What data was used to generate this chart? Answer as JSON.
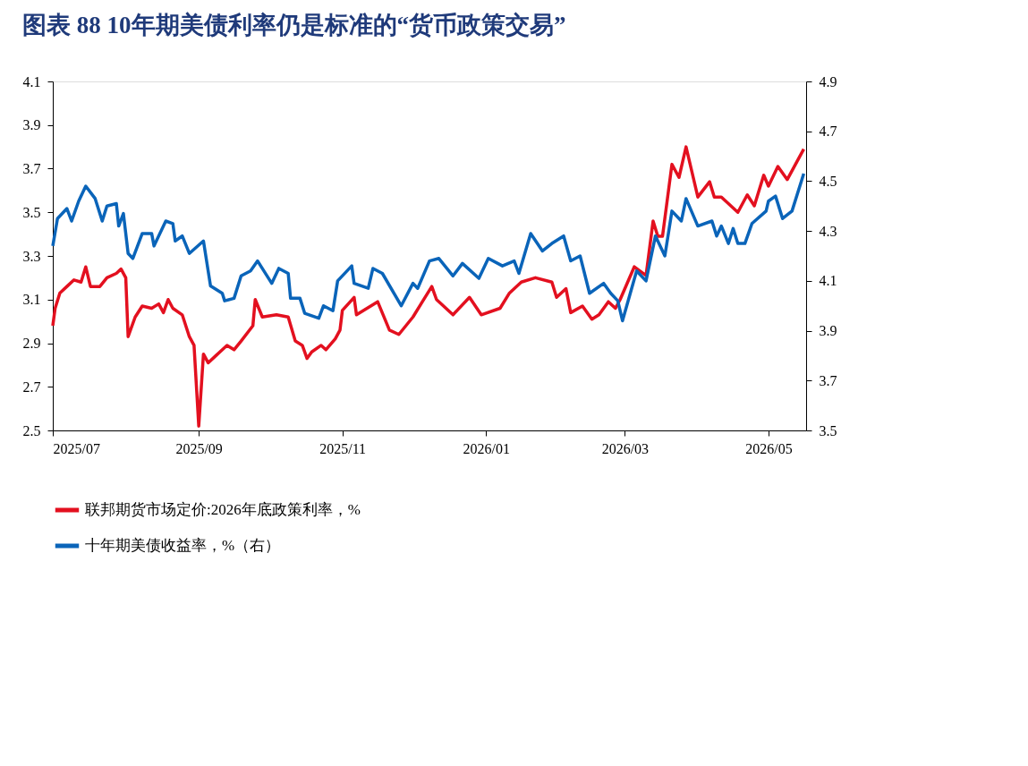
{
  "chart_data": {
    "type": "line",
    "title": "图表 88   10年期美债利率仍是标准的“货币政策交易”",
    "xlim": [
      "2025-07-01",
      "2026-05-17"
    ],
    "xticks": [
      {
        "value": "2025-07-01",
        "label": "2025/07"
      },
      {
        "value": "2025-09-01",
        "label": "2025/09"
      },
      {
        "value": "2025-11-01",
        "label": "2025/11"
      },
      {
        "value": "2026-01-01",
        "label": "2026/01"
      },
      {
        "value": "2026-03-01",
        "label": "2026/03"
      },
      {
        "value": "2026-05-01",
        "label": "2026/05"
      }
    ],
    "ylim": [
      2.5,
      4.1
    ],
    "yticks": [
      2.5,
      2.7,
      2.9,
      3.1,
      3.3,
      3.5,
      3.7,
      3.9,
      4.1
    ],
    "y2lim": [
      3.5,
      4.9
    ],
    "y2ticks": [
      3.5,
      3.7,
      3.9,
      4.1,
      4.3,
      4.5,
      4.7,
      4.9
    ],
    "grid": false,
    "legend": "bottom",
    "line_style": "solid",
    "series": [
      {
        "name": "联邦期货市场定价:2026年底政策利率，%",
        "color": "#e3101f",
        "axis": "y",
        "x": [
          "2025-07-01",
          "2025-07-02",
          "2025-07-04",
          "2025-07-07",
          "2025-07-10",
          "2025-07-13",
          "2025-07-15",
          "2025-07-17",
          "2025-07-21",
          "2025-07-24",
          "2025-07-28",
          "2025-07-30",
          "2025-08-01",
          "2025-08-02",
          "2025-08-05",
          "2025-08-08",
          "2025-08-12",
          "2025-08-15",
          "2025-08-17",
          "2025-08-19",
          "2025-08-21",
          "2025-08-25",
          "2025-08-28",
          "2025-08-30",
          "2025-09-01",
          "2025-09-03",
          "2025-09-05",
          "2025-09-08",
          "2025-09-10",
          "2025-09-13",
          "2025-09-16",
          "2025-09-19",
          "2025-09-24",
          "2025-09-25",
          "2025-09-28",
          "2025-10-04",
          "2025-10-09",
          "2025-10-12",
          "2025-10-15",
          "2025-10-17",
          "2025-10-19",
          "2025-10-23",
          "2025-10-25",
          "2025-10-29",
          "2025-10-31",
          "2025-11-01",
          "2025-11-06",
          "2025-11-07",
          "2025-11-16",
          "2025-11-21",
          "2025-11-25",
          "2025-12-01",
          "2025-12-05",
          "2025-12-09",
          "2025-12-11",
          "2025-12-18",
          "2025-12-25",
          "2025-12-30",
          "2026-01-07",
          "2026-01-11",
          "2026-01-16",
          "2026-01-22",
          "2026-01-29",
          "2026-01-31",
          "2026-02-04",
          "2026-02-06",
          "2026-02-11",
          "2026-02-15",
          "2026-02-18",
          "2026-02-22",
          "2026-02-25",
          "2026-02-27",
          "2026-03-05",
          "2026-03-10",
          "2026-03-13",
          "2026-03-15",
          "2026-03-17",
          "2026-03-21",
          "2026-03-24",
          "2026-03-27",
          "2026-04-01",
          "2026-04-06",
          "2026-04-08",
          "2026-04-11",
          "2026-04-18",
          "2026-04-22",
          "2026-04-25",
          "2026-04-29",
          "2026-05-01",
          "2026-05-05",
          "2026-05-09",
          "2026-05-13",
          "2026-05-16"
        ],
        "values": [
          2.98,
          3.06,
          3.13,
          3.16,
          3.19,
          3.18,
          3.25,
          3.16,
          3.16,
          3.2,
          3.22,
          3.24,
          3.2,
          2.93,
          3.02,
          3.07,
          3.06,
          3.08,
          3.04,
          3.1,
          3.06,
          3.03,
          2.93,
          2.89,
          2.52,
          2.85,
          2.81,
          2.84,
          2.86,
          2.89,
          2.87,
          2.91,
          2.98,
          3.1,
          3.02,
          3.03,
          3.02,
          2.91,
          2.89,
          2.83,
          2.86,
          2.89,
          2.87,
          2.92,
          2.96,
          3.05,
          3.11,
          3.03,
          3.09,
          2.96,
          2.94,
          3.02,
          3.09,
          3.16,
          3.1,
          3.03,
          3.11,
          3.03,
          3.06,
          3.13,
          3.18,
          3.2,
          3.18,
          3.11,
          3.15,
          3.04,
          3.07,
          3.01,
          3.03,
          3.09,
          3.06,
          3.1,
          3.25,
          3.21,
          3.46,
          3.39,
          3.39,
          3.72,
          3.66,
          3.8,
          3.57,
          3.64,
          3.57,
          3.57,
          3.5,
          3.58,
          3.53,
          3.67,
          3.62,
          3.71,
          3.65,
          3.73,
          3.79
        ]
      },
      {
        "name": "十年期美债收益率，%（右）",
        "color": "#0a64b9",
        "axis": "y2",
        "x": [
          "2025-07-01",
          "2025-07-03",
          "2025-07-07",
          "2025-07-09",
          "2025-07-12",
          "2025-07-15",
          "2025-07-19",
          "2025-07-22",
          "2025-07-24",
          "2025-07-28",
          "2025-07-29",
          "2025-07-31",
          "2025-08-02",
          "2025-08-04",
          "2025-08-08",
          "2025-08-12",
          "2025-08-13",
          "2025-08-18",
          "2025-08-21",
          "2025-08-22",
          "2025-08-25",
          "2025-08-28",
          "2025-09-03",
          "2025-09-06",
          "2025-09-11",
          "2025-09-12",
          "2025-09-16",
          "2025-09-19",
          "2025-09-23",
          "2025-09-26",
          "2025-10-02",
          "2025-10-05",
          "2025-10-09",
          "2025-10-10",
          "2025-10-14",
          "2025-10-16",
          "2025-10-22",
          "2025-10-24",
          "2025-10-28",
          "2025-10-30",
          "2025-11-05",
          "2025-11-06",
          "2025-11-12",
          "2025-11-14",
          "2025-11-18",
          "2025-11-26",
          "2025-12-01",
          "2025-12-03",
          "2025-12-08",
          "2025-12-12",
          "2025-12-18",
          "2025-12-22",
          "2025-12-29",
          "2026-01-02",
          "2026-01-08",
          "2026-01-13",
          "2026-01-15",
          "2026-01-20",
          "2026-01-25",
          "2026-01-29",
          "2026-02-03",
          "2026-02-06",
          "2026-02-10",
          "2026-02-14",
          "2026-02-20",
          "2026-02-23",
          "2026-02-26",
          "2026-02-28",
          "2026-03-06",
          "2026-03-10",
          "2026-03-14",
          "2026-03-18",
          "2026-03-21",
          "2026-03-25",
          "2026-03-27",
          "2026-04-01",
          "2026-04-07",
          "2026-04-09",
          "2026-04-11",
          "2026-04-14",
          "2026-04-16",
          "2026-04-18",
          "2026-04-21",
          "2026-04-24",
          "2026-04-30",
          "2026-05-01",
          "2026-05-04",
          "2026-05-07",
          "2026-05-11",
          "2026-05-16"
        ],
        "values": [
          4.24,
          4.35,
          4.39,
          4.34,
          4.42,
          4.48,
          4.43,
          4.34,
          4.4,
          4.41,
          4.32,
          4.37,
          4.21,
          4.19,
          4.29,
          4.29,
          4.24,
          4.34,
          4.33,
          4.26,
          4.28,
          4.21,
          4.26,
          4.08,
          4.05,
          4.02,
          4.03,
          4.12,
          4.14,
          4.18,
          4.09,
          4.15,
          4.13,
          4.03,
          4.03,
          3.97,
          3.95,
          4.0,
          3.98,
          4.1,
          4.16,
          4.09,
          4.07,
          4.15,
          4.13,
          4.0,
          4.09,
          4.07,
          4.18,
          4.19,
          4.12,
          4.17,
          4.11,
          4.19,
          4.16,
          4.18,
          4.13,
          4.29,
          4.22,
          4.25,
          4.28,
          4.18,
          4.2,
          4.05,
          4.09,
          4.05,
          4.02,
          3.94,
          4.14,
          4.1,
          4.28,
          4.2,
          4.38,
          4.34,
          4.43,
          4.32,
          4.34,
          4.28,
          4.32,
          4.25,
          4.31,
          4.25,
          4.25,
          4.33,
          4.38,
          4.42,
          4.44,
          4.35,
          4.38,
          4.53
        ]
      }
    ]
  }
}
